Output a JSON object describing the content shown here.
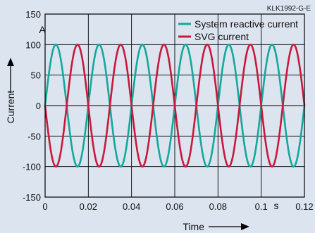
{
  "chart_data": {
    "type": "line",
    "figure_code": "KLK1992-G-E",
    "xlabel": "Time",
    "ylabel": "Current",
    "x_unit": "s",
    "y_unit": "A",
    "xlim": [
      0,
      0.12
    ],
    "ylim": [
      -150,
      150
    ],
    "x_ticks": [
      "0",
      "0.02",
      "0.04",
      "0.06",
      "0.08",
      "0.1",
      "0.12"
    ],
    "y_ticks": [
      "150",
      "100",
      "50",
      "0",
      "-50",
      "-100",
      "-150"
    ],
    "grid": true,
    "legend_position": "top-right",
    "series": [
      {
        "name": "System reactive current",
        "color": "#14a89a",
        "waveform": "sine",
        "amplitude": 100,
        "period": 0.02,
        "phase_deg": 0
      },
      {
        "name": "SVG current",
        "color": "#c8193c",
        "waveform": "sine",
        "amplitude": 100,
        "period": 0.02,
        "phase_deg": 180
      }
    ]
  }
}
